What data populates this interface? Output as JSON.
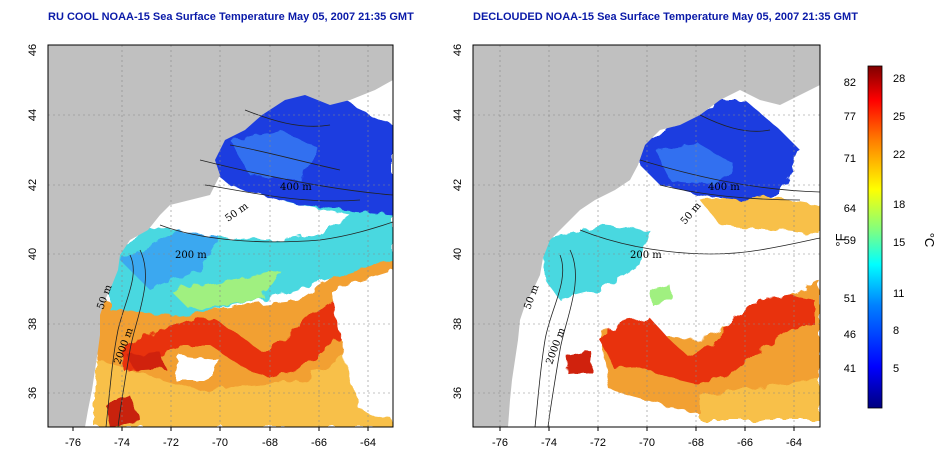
{
  "panels": [
    {
      "id": "left",
      "title": "RU COOL NOAA-15 Sea Surface Temperature May 05, 2007 21:35 GMT",
      "mode": "cloudy"
    },
    {
      "id": "right",
      "title": "DECLOUDED NOAA-15 Sea Surface Temperature May 05, 2007 21:35 GMT",
      "mode": "declouded"
    }
  ],
  "axes": {
    "x_ticks": [
      "-76",
      "-74",
      "-72",
      "-70",
      "-68",
      "-66",
      "-64"
    ],
    "y_ticks": [
      "36",
      "38",
      "40",
      "42",
      "44",
      "46"
    ],
    "lon_range": [
      -77,
      -63
    ],
    "lat_range": [
      35,
      46
    ]
  },
  "contour_labels": {
    "m400": "400 m",
    "m50": "50 m",
    "m200": "200 m",
    "m50b": "50 m",
    "m2000": "2000 m"
  },
  "colorbar": {
    "unit_f": "°F",
    "unit_c": "°C",
    "f_labels": [
      "82",
      "77",
      "71",
      "64",
      "59",
      "51",
      "46",
      "41"
    ],
    "c_labels": [
      "28",
      "25",
      "22",
      "18",
      "15",
      "11",
      "8",
      "5"
    ],
    "colors": [
      "#00007f",
      "#0000ff",
      "#0080ff",
      "#00ffff",
      "#80ff80",
      "#ffff00",
      "#ff8000",
      "#ff0000",
      "#7f0000"
    ]
  },
  "map_colors": {
    "land": "#c0c0c0",
    "cloud": "#ffffff",
    "cold": "#1a3ce0",
    "cool": "#3aa0f0",
    "mid": "#50e0d0",
    "warm": "#f0b030",
    "hot": "#e83010"
  }
}
